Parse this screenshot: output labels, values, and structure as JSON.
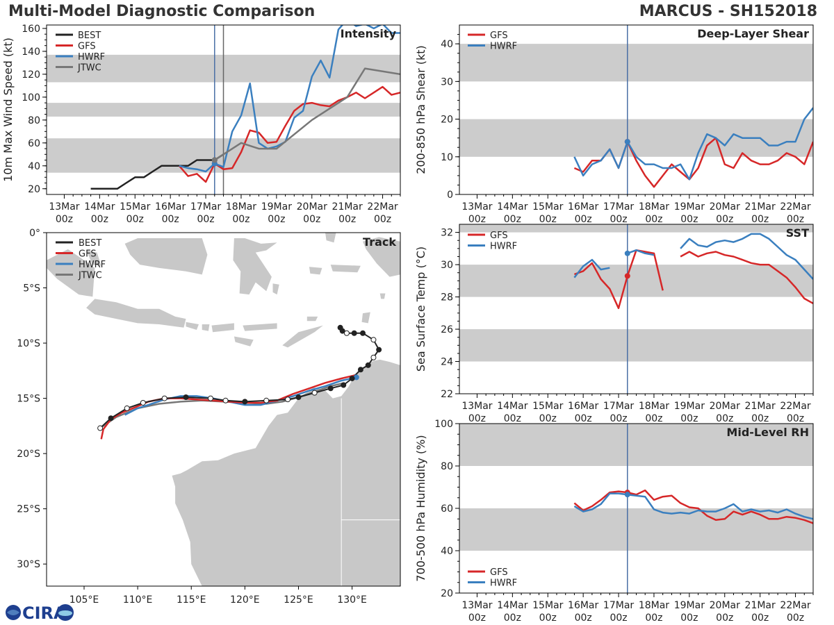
{
  "header": {
    "title": "Multi-Model Diagnostic Comparison",
    "storm": "MARCUS - SH152018"
  },
  "logo": {
    "text": "CIRA"
  },
  "colors": {
    "BEST": "#222222",
    "GFS": "#d62728",
    "HWRF": "#3a7fbf",
    "JTWC": "#777777",
    "band": "#cccccc",
    "land": "#c8c8c8",
    "marker": "#4a6fa5"
  },
  "time_axis": {
    "ticks": [
      0,
      1,
      2,
      3,
      4,
      5,
      6,
      7,
      8,
      9
    ],
    "labels": [
      "13Mar",
      "14Mar",
      "15Mar",
      "16Mar",
      "17Mar",
      "18Mar",
      "19Mar",
      "20Mar",
      "21Mar",
      "22Mar"
    ],
    "sublabel": "00z",
    "xlim": [
      -0.5,
      9.5
    ]
  },
  "chart_data": [
    {
      "id": "intensity",
      "type": "line",
      "title": "Intensity",
      "ylabel": "10m Max Wind Speed (kt)",
      "ylim": [
        15,
        163
      ],
      "yticks": [
        20,
        40,
        60,
        80,
        100,
        120,
        140,
        160
      ],
      "bands": [
        [
          34,
          64
        ],
        [
          83,
          95
        ],
        [
          113,
          137
        ]
      ],
      "vlines": [
        4.25,
        4.5
      ],
      "legend": [
        "BEST",
        "GFS",
        "HWRF",
        "JTWC"
      ],
      "series": [
        {
          "name": "BEST",
          "x": [
            0.75,
            1,
            1.25,
            1.5,
            1.75,
            2,
            2.25,
            2.5,
            2.75,
            3,
            3.25,
            3.5,
            3.75,
            4,
            4.25,
            4.5
          ],
          "y": [
            20,
            20,
            20,
            20,
            25,
            30,
            30,
            35,
            40,
            40,
            40,
            40,
            45,
            45,
            45,
            50
          ]
        },
        {
          "name": "GFS",
          "x": [
            3.25,
            3.5,
            3.75,
            4,
            4.25,
            4.5,
            4.75,
            5,
            5.25,
            5.5,
            5.75,
            6,
            6.25,
            6.5,
            6.75,
            7,
            7.25,
            7.5,
            7.75,
            8,
            8.25,
            8.5,
            8.75,
            9,
            9.25,
            9.5
          ],
          "y": [
            40,
            31,
            33,
            26,
            42,
            37,
            38,
            52,
            71,
            69,
            60,
            61,
            75,
            88,
            94,
            95,
            93,
            92,
            97,
            100,
            104,
            99,
            104,
            109,
            102,
            104
          ]
        },
        {
          "name": "HWRF",
          "x": [
            3.25,
            3.5,
            3.75,
            4,
            4.25,
            4.5,
            4.75,
            5,
            5.25,
            5.5,
            5.75,
            6,
            6.25,
            6.5,
            6.75,
            7,
            7.25,
            7.5,
            7.75,
            8,
            8.25,
            8.5,
            8.75,
            9,
            9.25,
            9.5
          ],
          "y": [
            40,
            38,
            37,
            35,
            42,
            39,
            70,
            84,
            112,
            60,
            55,
            57,
            61,
            82,
            88,
            118,
            132,
            117,
            159,
            168,
            162,
            164,
            160,
            164,
            156,
            156
          ]
        },
        {
          "name": "JTWC",
          "x": [
            4.25,
            4.5,
            5,
            5.5,
            6,
            7,
            8,
            8.5,
            9.5
          ],
          "y": [
            45,
            50,
            60,
            55,
            55,
            80,
            100,
            125,
            120
          ]
        }
      ]
    },
    {
      "id": "shear",
      "type": "line",
      "title": "Deep-Layer Shear",
      "ylabel": "200-850 hPa Shear (kt)",
      "ylim": [
        0,
        45
      ],
      "yticks": [
        0,
        10,
        20,
        30,
        40
      ],
      "bands": [
        [
          10,
          20
        ],
        [
          30,
          40
        ]
      ],
      "vlines": [
        4.25
      ],
      "legend": [
        "GFS",
        "HWRF"
      ],
      "series": [
        {
          "name": "GFS",
          "x": [
            2.75,
            3,
            3.25,
            3.5,
            3.75,
            4,
            4.25,
            4.5,
            4.75,
            5,
            5.25,
            5.5,
            5.75,
            6,
            6.25,
            6.5,
            6.75,
            7,
            7.25,
            7.5,
            7.75,
            8,
            8.25,
            8.5,
            8.75,
            9,
            9.25,
            9.5
          ],
          "y": [
            7,
            6,
            9,
            9,
            12,
            7,
            14,
            9,
            5,
            2,
            5,
            8,
            6,
            4,
            7,
            13,
            15,
            8,
            7,
            11,
            9,
            8,
            8,
            9,
            11,
            10,
            8,
            14
          ]
        },
        {
          "name": "HWRF",
          "x": [
            2.75,
            3,
            3.25,
            3.5,
            3.75,
            4,
            4.25,
            4.5,
            4.75,
            5,
            5.25,
            5.5,
            5.75,
            6,
            6.25,
            6.5,
            6.75,
            7,
            7.25,
            7.5,
            7.75,
            8,
            8.25,
            8.5,
            8.75,
            9,
            9.25,
            9.5
          ],
          "y": [
            10,
            5,
            8,
            9,
            12,
            7,
            14,
            10,
            8,
            8,
            7,
            7,
            8,
            4,
            11,
            16,
            15,
            13,
            16,
            15,
            15,
            15,
            13,
            13,
            14,
            14,
            20,
            23
          ]
        }
      ]
    },
    {
      "id": "sst",
      "type": "line",
      "title": "SST",
      "ylabel": "Sea Surface Temp (°C)",
      "ylim": [
        22,
        32.5
      ],
      "yticks": [
        22,
        24,
        26,
        28,
        30,
        32
      ],
      "bands": [
        [
          24,
          26
        ],
        [
          28,
          30
        ],
        [
          32,
          34
        ]
      ],
      "vlines": [
        4.25
      ],
      "legend": [
        "GFS",
        "HWRF"
      ],
      "series": [
        {
          "name": "GFS",
          "segments": [
            {
              "x": [
                2.75,
                3,
                3.25,
                3.5,
                3.75,
                4,
                4.25,
                4.5,
                4.75,
                5,
                5.25
              ],
              "y": [
                29.4,
                29.6,
                30.1,
                29.1,
                28.5,
                27.3,
                29.3,
                30.9,
                30.8,
                30.7,
                28.4
              ]
            },
            {
              "x": [
                5.75,
                6,
                6.25,
                6.5,
                6.75,
                7,
                7.25,
                7.5,
                7.75,
                8,
                8.25,
                8.5,
                8.75,
                9,
                9.25,
                9.5
              ],
              "y": [
                30.5,
                30.8,
                30.5,
                30.7,
                30.8,
                30.6,
                30.5,
                30.3,
                30.1,
                30,
                30,
                29.6,
                29.2,
                28.6,
                27.9,
                27.6
              ]
            }
          ]
        },
        {
          "name": "HWRF",
          "segments": [
            {
              "x": [
                2.75,
                3,
                3.25,
                3.5,
                3.75
              ],
              "y": [
                29.2,
                29.9,
                30.3,
                29.7,
                29.8
              ]
            },
            {
              "x": [
                4.25,
                4.5,
                4.75,
                5
              ],
              "y": [
                30.7,
                30.9,
                30.7,
                30.6
              ]
            },
            {
              "x": [
                5.75,
                6,
                6.25,
                6.5,
                6.75,
                7,
                7.25,
                7.5,
                7.75,
                8,
                8.25,
                8.5,
                8.75,
                9,
                9.25,
                9.5
              ],
              "y": [
                31,
                31.6,
                31.2,
                31.1,
                31.4,
                31.5,
                31.4,
                31.6,
                31.9,
                31.9,
                31.6,
                31.1,
                30.6,
                30.3,
                29.7,
                29.1
              ]
            }
          ]
        }
      ]
    },
    {
      "id": "rh",
      "type": "line",
      "title": "Mid-Level RH",
      "ylabel": "700-500 hPa Humidity (%)",
      "ylim": [
        20,
        100
      ],
      "yticks": [
        20,
        40,
        60,
        80,
        100
      ],
      "bands": [
        [
          40,
          60
        ],
        [
          80,
          100
        ]
      ],
      "vlines": [
        4.25
      ],
      "legend": [
        "GFS",
        "HWRF"
      ],
      "series": [
        {
          "name": "GFS",
          "x": [
            2.75,
            3,
            3.25,
            3.5,
            3.75,
            4,
            4.25,
            4.5,
            4.75,
            5,
            5.25,
            5.5,
            5.75,
            6,
            6.25,
            6.5,
            6.75,
            7,
            7.25,
            7.5,
            7.75,
            8,
            8.25,
            8.5,
            8.75,
            9,
            9.25,
            9.5
          ],
          "y": [
            62.5,
            59,
            61,
            64,
            67.5,
            68,
            67.5,
            66.5,
            68.5,
            64,
            65.5,
            66,
            62.5,
            60.5,
            60,
            56.5,
            54.5,
            55,
            58.5,
            57,
            58.5,
            57,
            55,
            55,
            56,
            55.5,
            54.5,
            53
          ]
        },
        {
          "name": "HWRF",
          "x": [
            2.75,
            3,
            3.25,
            3.5,
            3.75,
            4,
            4.25,
            4.5,
            4.75,
            5,
            5.25,
            5.5,
            5.75,
            6,
            6.25,
            6.5,
            6.75,
            7,
            7.25,
            7.5,
            7.75,
            8,
            8.25,
            8.5,
            8.75,
            9,
            9.25,
            9.5
          ],
          "y": [
            61,
            58.5,
            59.5,
            62,
            67,
            67,
            66.5,
            66,
            65.5,
            59.5,
            58,
            57.5,
            58,
            57.5,
            59,
            58.5,
            58.5,
            60,
            62,
            58.5,
            59.5,
            58.5,
            59,
            58,
            59.5,
            57.5,
            56,
            55
          ]
        }
      ]
    },
    {
      "id": "track",
      "type": "scatter",
      "title": "Track",
      "xlim": [
        101.5,
        134.5
      ],
      "ylim": [
        -32,
        0
      ],
      "xticks": [
        105,
        110,
        115,
        120,
        125,
        130
      ],
      "xticklabels": [
        "105°E",
        "110°E",
        "115°E",
        "120°E",
        "125°E",
        "130°E"
      ],
      "yticks": [
        0,
        -5,
        -10,
        -15,
        -20,
        -25,
        -30
      ],
      "yticklabels": [
        "0°",
        "5°S",
        "10°S",
        "15°S",
        "20°S",
        "25°S",
        "30°S"
      ],
      "legend": [
        "BEST",
        "GFS",
        "HWRF",
        "JTWC"
      ],
      "series": [
        {
          "name": "BEST",
          "lon": [
            128.9,
            129.1,
            129.5,
            130.2,
            131.0,
            132.0,
            132.5,
            132.0,
            131.5,
            130.8,
            130.0,
            129.2,
            128.0,
            126.5,
            125.0,
            124.0,
            122.0,
            120.0,
            118.2,
            116.8,
            114.5,
            112.5,
            110.5,
            109.0,
            107.5,
            106.5
          ],
          "lat": [
            -8.6,
            -8.9,
            -9.1,
            -9.1,
            -9.1,
            -9.7,
            -10.6,
            -11.3,
            -12.0,
            -12.4,
            -13.2,
            -13.8,
            -14.1,
            -14.5,
            -14.9,
            -15.1,
            -15.2,
            -15.3,
            -15.2,
            -15.0,
            -14.9,
            -15.0,
            -15.4,
            -15.9,
            -16.8,
            -17.7
          ],
          "open": [
            0,
            0,
            1,
            0,
            0,
            1,
            0,
            1,
            0,
            0,
            0,
            0,
            0,
            1,
            0,
            1,
            1,
            0,
            1,
            1,
            0,
            1,
            1,
            1,
            0,
            1
          ]
        },
        {
          "name": "GFS",
          "lon": [
            130.3,
            129.0,
            127.5,
            126.0,
            124.5,
            123.0,
            121.5,
            120.0,
            118.5,
            117.0,
            115.5,
            114.0,
            112.5,
            111.0,
            109.8,
            108.5,
            107.5,
            106.8,
            106.6
          ],
          "lat": [
            -12.9,
            -13.2,
            -13.6,
            -14.1,
            -14.6,
            -15.2,
            -15.4,
            -15.4,
            -15.3,
            -15.2,
            -15.1,
            -15.0,
            -15.0,
            -15.3,
            -15.8,
            -16.3,
            -16.9,
            -17.8,
            -18.7
          ]
        },
        {
          "name": "HWRF",
          "lon": [
            130.4,
            129.0,
            127.5,
            126.0,
            124.5,
            123.0,
            121.5,
            120.0,
            118.5,
            117.0,
            115.5,
            114.0,
            112.5,
            111.0,
            110.0,
            108.8
          ],
          "lat": [
            -13.1,
            -13.4,
            -13.9,
            -14.3,
            -14.8,
            -15.2,
            -15.6,
            -15.6,
            -15.3,
            -15.0,
            -14.8,
            -14.8,
            -15.1,
            -15.6,
            -15.9,
            -16.5
          ]
        },
        {
          "name": "JTWC",
          "lon": [
            129.3,
            128.0,
            126.5,
            125.0,
            123.5,
            122.0,
            120.0,
            118.0,
            116.0,
            114.0,
            112.0,
            110.0,
            108.0,
            106.5
          ],
          "lat": [
            -13.6,
            -13.9,
            -14.4,
            -14.9,
            -15.3,
            -15.5,
            -15.4,
            -15.3,
            -15.2,
            -15.3,
            -15.5,
            -15.9,
            -16.7,
            -17.7
          ]
        }
      ]
    }
  ]
}
